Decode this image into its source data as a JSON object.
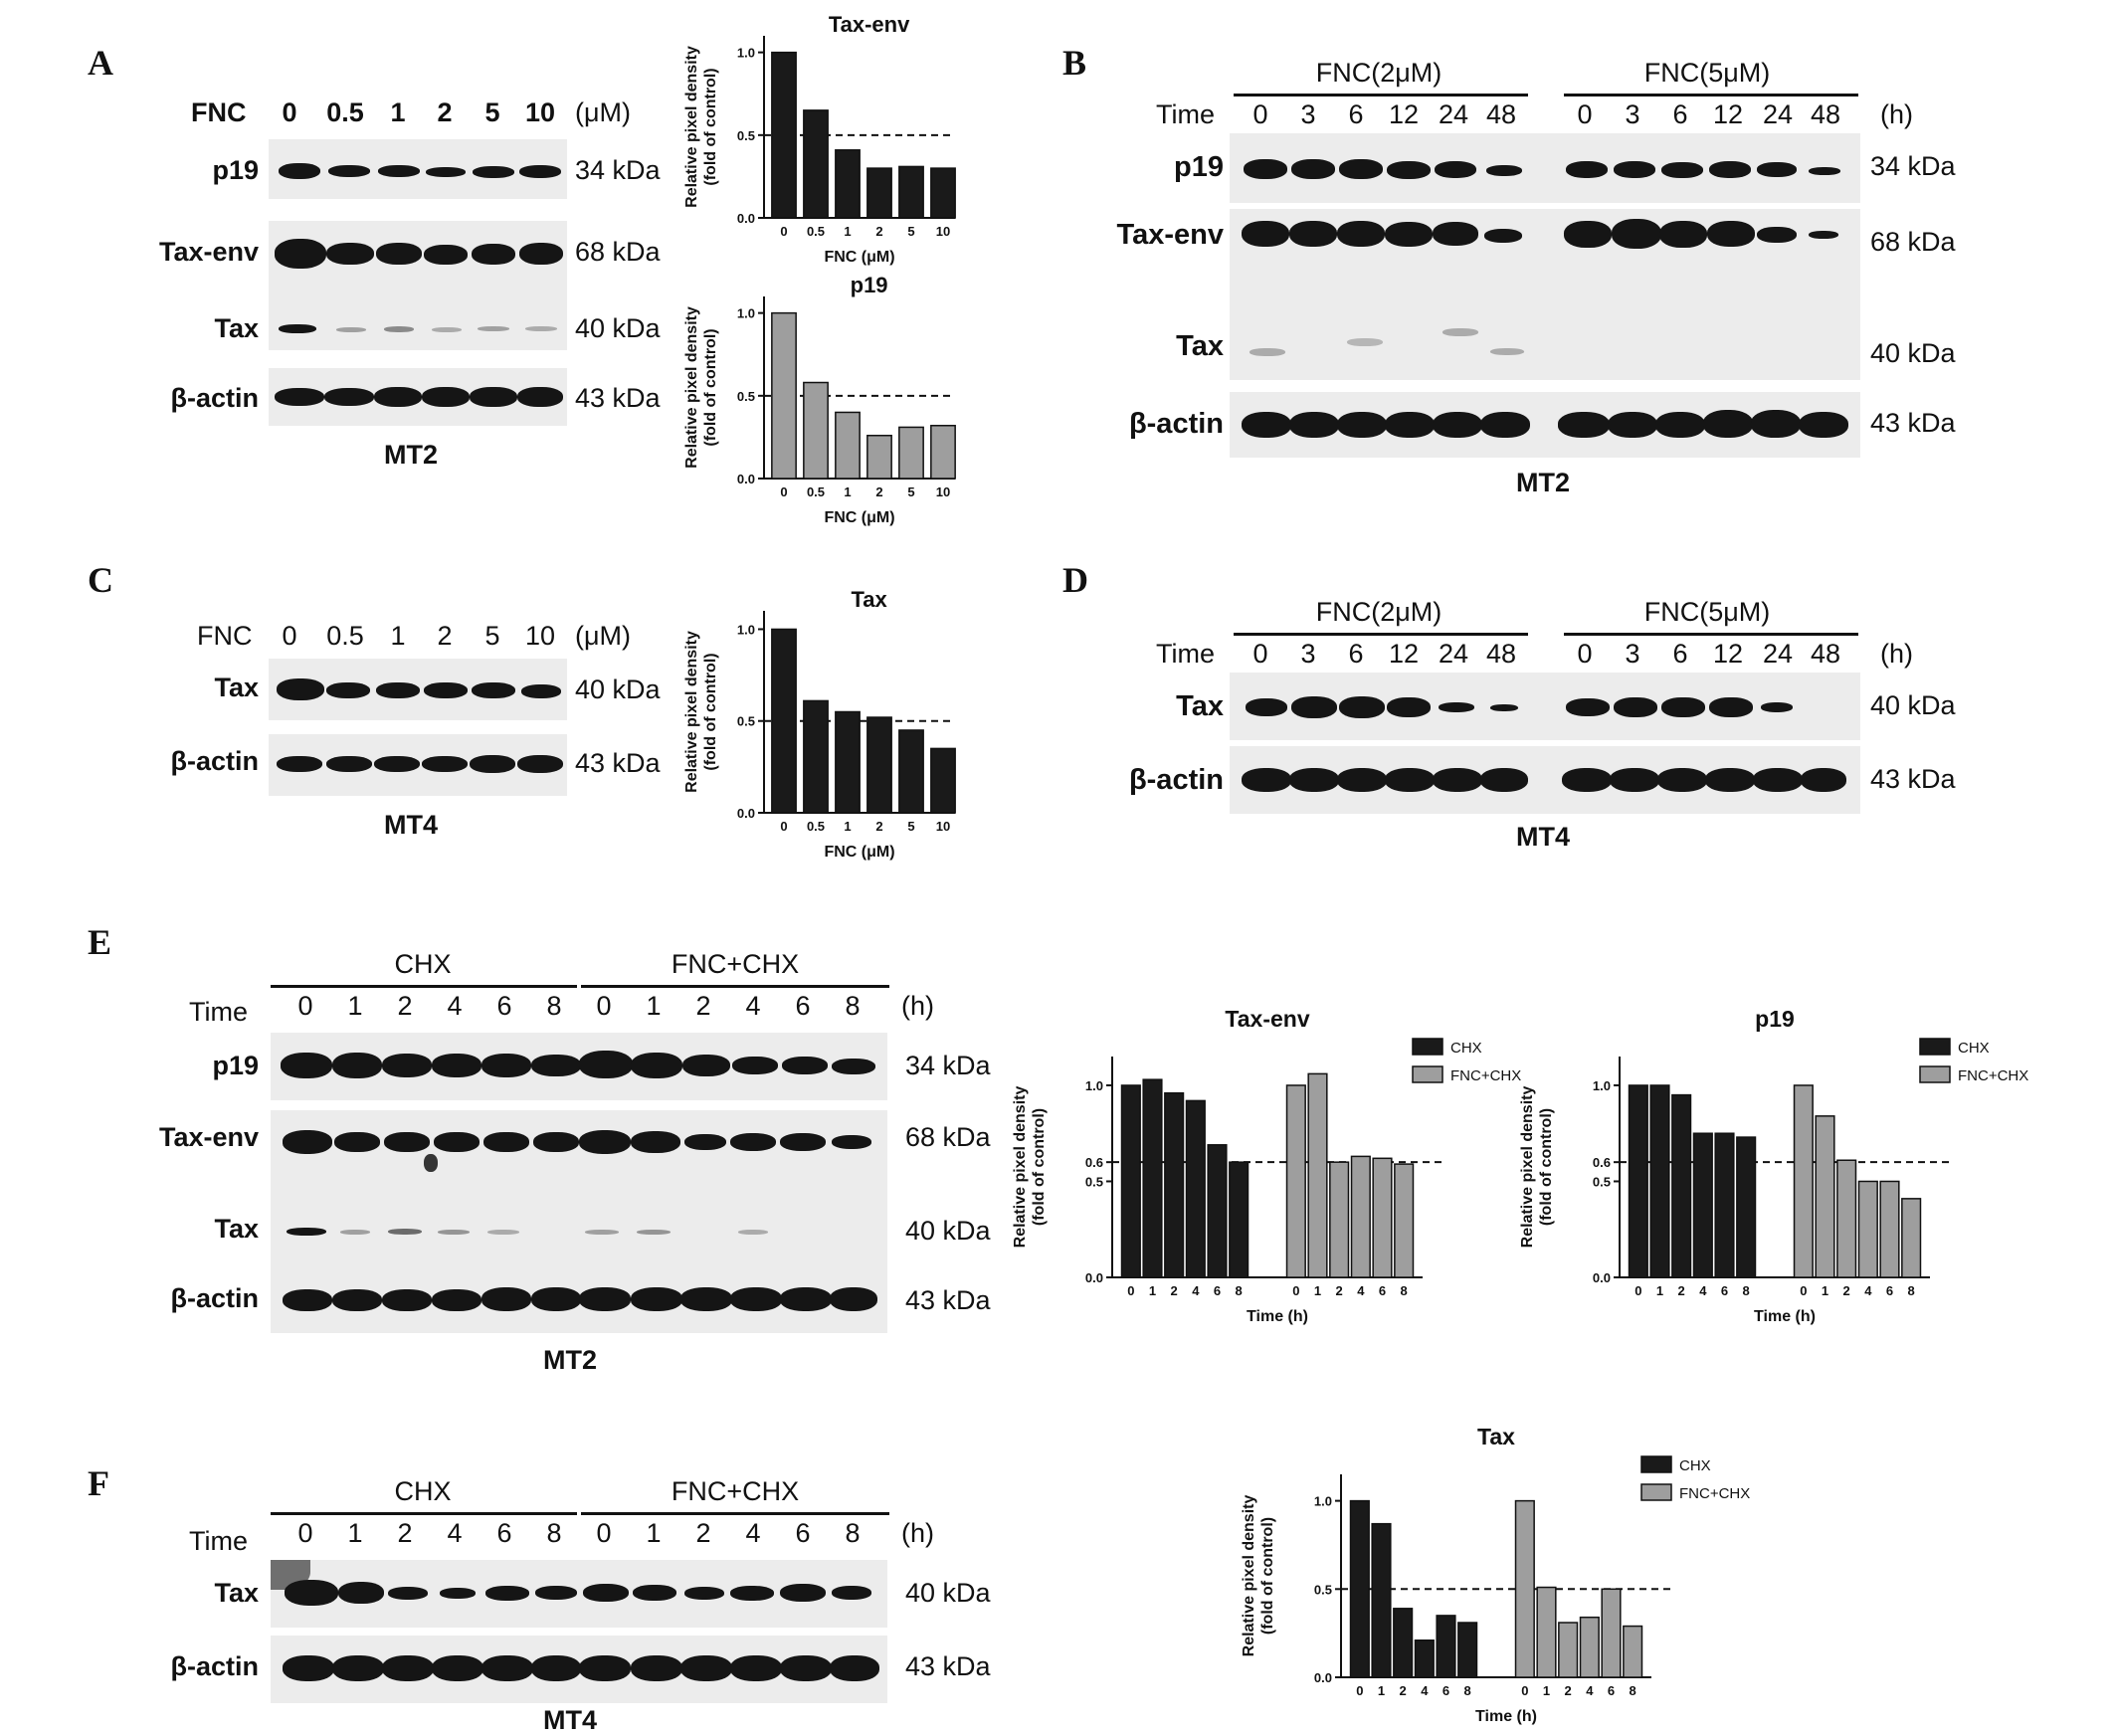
{
  "panels": {
    "A": {
      "label": "A",
      "row_header": "FNC",
      "doses": [
        "0",
        "0.5",
        "1",
        "2",
        "5",
        "10"
      ],
      "unit": "(μM)",
      "rows": [
        {
          "name": "p19",
          "kda": "34 kDa"
        },
        {
          "name": "Tax-env",
          "kda": "68 kDa"
        },
        {
          "name": "Tax",
          "kda": "40 kDa"
        },
        {
          "name": "β-actin",
          "kda": "43 kDa"
        }
      ],
      "cell_line": "MT2"
    },
    "B": {
      "label": "B",
      "groups": [
        "FNC(2μM)",
        "FNC(5μM)"
      ],
      "row_header": "Time",
      "times": [
        "0",
        "3",
        "6",
        "12",
        "24",
        "48",
        "0",
        "3",
        "6",
        "12",
        "24",
        "48"
      ],
      "unit": "(h)",
      "rows": [
        {
          "name": "p19",
          "kda": "34 kDa"
        },
        {
          "name": "Tax-env",
          "kda": "68 kDa"
        },
        {
          "name": "Tax",
          "kda": "40 kDa"
        },
        {
          "name": "β-actin",
          "kda": "43 kDa"
        }
      ],
      "cell_line": "MT2"
    },
    "C": {
      "label": "C",
      "row_header": "FNC",
      "doses": [
        "0",
        "0.5",
        "1",
        "2",
        "5",
        "10"
      ],
      "unit": "(μM)",
      "rows": [
        {
          "name": "Tax",
          "kda": "40 kDa"
        },
        {
          "name": "β-actin",
          "kda": "43 kDa"
        }
      ],
      "cell_line": "MT4"
    },
    "D": {
      "label": "D",
      "groups": [
        "FNC(2μM)",
        "FNC(5μM)"
      ],
      "row_header": "Time",
      "times": [
        "0",
        "3",
        "6",
        "12",
        "24",
        "48",
        "0",
        "3",
        "6",
        "12",
        "24",
        "48"
      ],
      "unit": "(h)",
      "rows": [
        {
          "name": "Tax",
          "kda": "40 kDa"
        },
        {
          "name": "β-actin",
          "kda": "43 kDa"
        }
      ],
      "cell_line": "MT4"
    },
    "E": {
      "label": "E",
      "groups": [
        "CHX",
        "FNC+CHX"
      ],
      "row_header": "Time",
      "times": [
        "0",
        "1",
        "2",
        "4",
        "6",
        "8",
        "0",
        "1",
        "2",
        "4",
        "6",
        "8"
      ],
      "unit": "(h)",
      "rows": [
        {
          "name": "p19",
          "kda": "34 kDa"
        },
        {
          "name": "Tax-env",
          "kda": "68 kDa"
        },
        {
          "name": "Tax",
          "kda": "40 kDa"
        },
        {
          "name": "β-actin",
          "kda": "43 kDa"
        }
      ],
      "cell_line": "MT2"
    },
    "F": {
      "label": "F",
      "groups": [
        "CHX",
        "FNC+CHX"
      ],
      "row_header": "Time",
      "times": [
        "0",
        "1",
        "2",
        "4",
        "6",
        "8",
        "0",
        "1",
        "2",
        "4",
        "6",
        "8"
      ],
      "unit": "(h)",
      "rows": [
        {
          "name": "Tax",
          "kda": "40 kDa"
        },
        {
          "name": "β-actin",
          "kda": "43 kDa"
        }
      ],
      "cell_line": "MT4"
    }
  },
  "colors": {
    "chx": "#1a1a1a",
    "fnc_chx": "#9e9e9e",
    "dose_black": "#1a1a1a",
    "dose_gray": "#9e9e9e"
  },
  "chart_data": [
    {
      "id": "A-taxenv",
      "type": "bar",
      "title": "Tax-env",
      "xlabel": "FNC (μM)",
      "ylabel": "Relative pixel density\n(fold of control)",
      "categories": [
        "0",
        "0.5",
        "1",
        "2",
        "5",
        "10"
      ],
      "values": [
        1.0,
        0.65,
        0.41,
        0.3,
        0.31,
        0.3
      ],
      "ylim": [
        0,
        1.1
      ],
      "yticks": [
        "0.0",
        "0.5",
        "1.0"
      ],
      "reference_line": 0.5,
      "color": "#1a1a1a"
    },
    {
      "id": "A-p19",
      "type": "bar",
      "title": "p19",
      "xlabel": "FNC (μM)",
      "ylabel": "Relative pixel density\n(fold of control)",
      "categories": [
        "0",
        "0.5",
        "1",
        "2",
        "5",
        "10"
      ],
      "values": [
        1.0,
        0.58,
        0.4,
        0.26,
        0.31,
        0.32
      ],
      "ylim": [
        0,
        1.1
      ],
      "yticks": [
        "0.0",
        "0.5",
        "1.0"
      ],
      "reference_line": 0.5,
      "color": "#9e9e9e"
    },
    {
      "id": "C-tax",
      "type": "bar",
      "title": "Tax",
      "xlabel": "FNC (μM)",
      "ylabel": "Relative pixel density\n(fold of control)",
      "categories": [
        "0",
        "0.5",
        "1",
        "2",
        "5",
        "10"
      ],
      "values": [
        1.0,
        0.61,
        0.55,
        0.52,
        0.45,
        0.35
      ],
      "ylim": [
        0,
        1.1
      ],
      "yticks": [
        "0.0",
        "0.5",
        "1.0"
      ],
      "reference_line": 0.5,
      "color": "#1a1a1a"
    },
    {
      "id": "E-taxenv",
      "type": "bar",
      "title": "Tax-env",
      "xlabel": "Time (h)",
      "ylabel": "Relative pixel density\n(fold of control)",
      "categories": [
        "0",
        "1",
        "2",
        "4",
        "6",
        "8"
      ],
      "series": [
        {
          "name": "CHX",
          "values": [
            1.0,
            1.03,
            0.96,
            0.92,
            0.69,
            0.6
          ]
        },
        {
          "name": "FNC+CHX",
          "values": [
            1.0,
            1.06,
            0.6,
            0.63,
            0.62,
            0.59
          ]
        }
      ],
      "ylim": [
        0,
        1.15
      ],
      "yticks": [
        "0.0",
        "0.5",
        "0.6",
        "1.0"
      ],
      "reference_line": 0.6,
      "legend": "top-right"
    },
    {
      "id": "E-p19",
      "type": "bar",
      "title": "p19",
      "xlabel": "Time (h)",
      "ylabel": "Relative pixel density\n(fold of control)",
      "categories": [
        "0",
        "1",
        "2",
        "4",
        "6",
        "8"
      ],
      "series": [
        {
          "name": "CHX",
          "values": [
            1.0,
            1.0,
            0.95,
            0.75,
            0.75,
            0.73
          ]
        },
        {
          "name": "FNC+CHX",
          "values": [
            1.0,
            0.84,
            0.61,
            0.5,
            0.5,
            0.41
          ]
        }
      ],
      "ylim": [
        0,
        1.15
      ],
      "yticks": [
        "0.0",
        "0.5",
        "0.6",
        "1.0"
      ],
      "reference_line": 0.6,
      "legend": "top-right"
    },
    {
      "id": "F-tax",
      "type": "bar",
      "title": "Tax",
      "xlabel": "Time (h)",
      "ylabel": "Relative pixel density\n(fold of control)",
      "categories": [
        "0",
        "1",
        "2",
        "4",
        "6",
        "8"
      ],
      "series": [
        {
          "name": "CHX",
          "values": [
            1.0,
            0.87,
            0.39,
            0.21,
            0.35,
            0.31
          ]
        },
        {
          "name": "FNC+CHX",
          "values": [
            1.0,
            0.51,
            0.31,
            0.34,
            0.5,
            0.29
          ]
        }
      ],
      "ylim": [
        0,
        1.15
      ],
      "yticks": [
        "0.0",
        "0.5",
        "1.0"
      ],
      "reference_line": 0.5,
      "legend": "top-right"
    }
  ]
}
